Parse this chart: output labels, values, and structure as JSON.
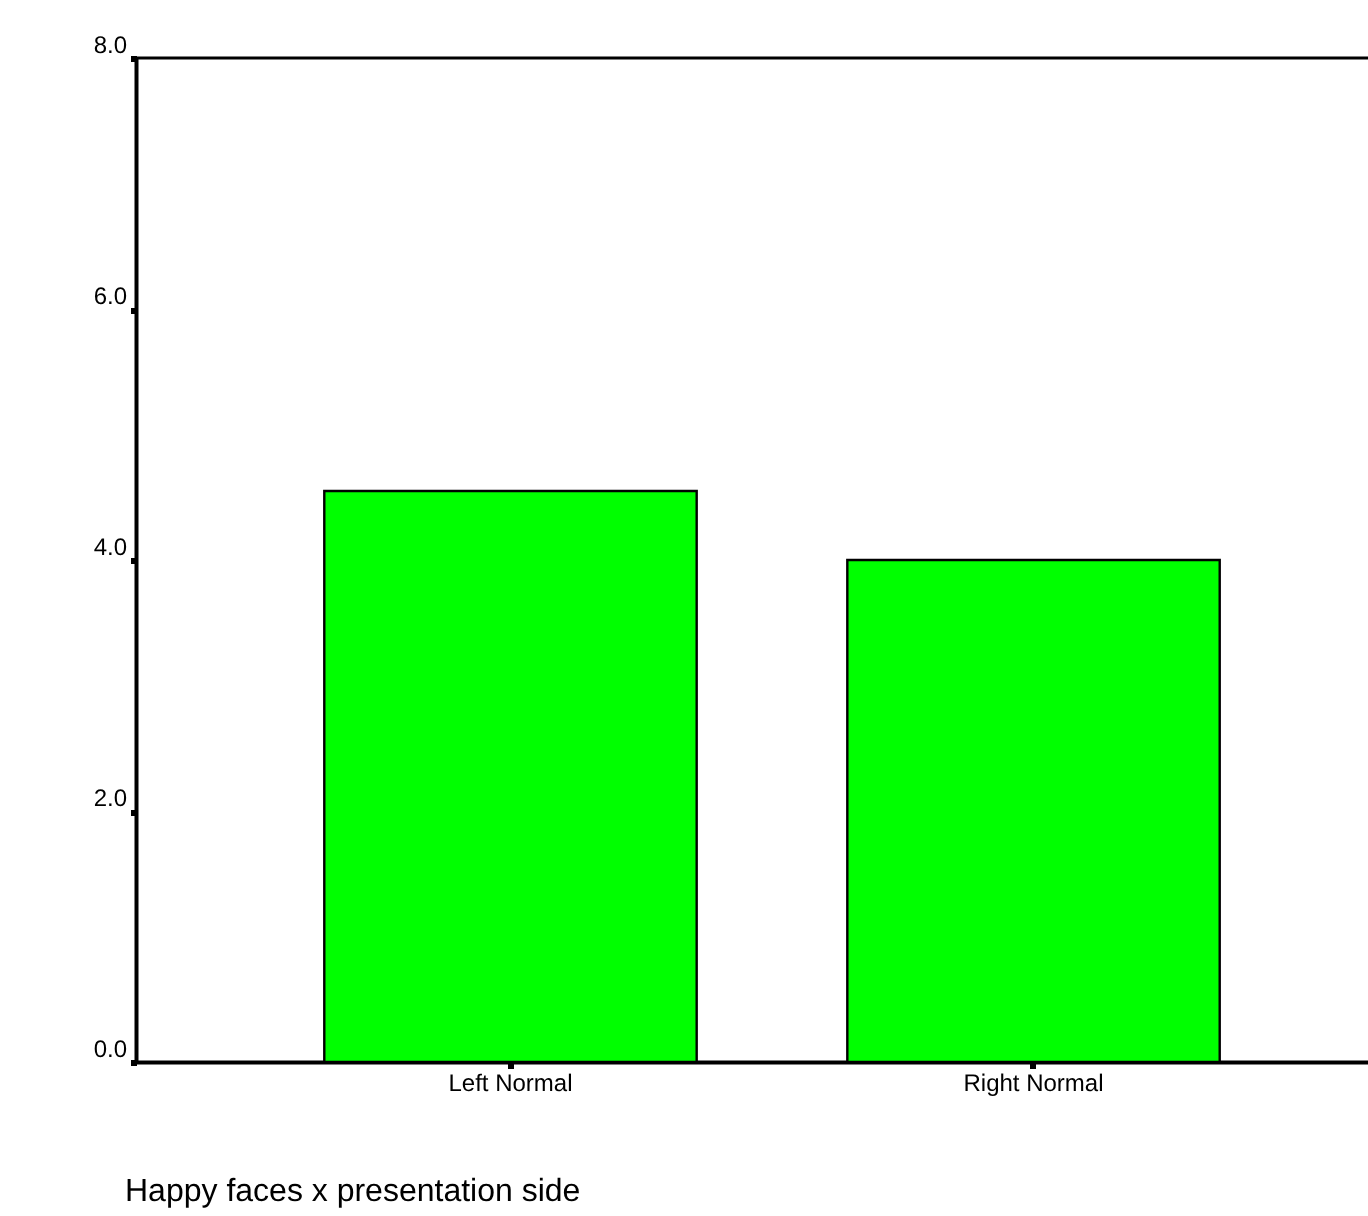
{
  "chart_data": {
    "type": "bar",
    "xlabel": "Happy faces x presentation side",
    "categories": [
      "Left Normal",
      "Right Normal"
    ],
    "values": [
      4.55,
      4.0
    ],
    "color": "#00ff00",
    "ylim": [
      0,
      8
    ],
    "yticks": [
      {
        "value": 0,
        "label": "0.0"
      },
      {
        "value": 2,
        "label": "2.0"
      },
      {
        "value": 4,
        "label": "4.0"
      },
      {
        "value": 6,
        "label": "6.0"
      },
      {
        "value": 8,
        "label": "8.0"
      }
    ]
  }
}
